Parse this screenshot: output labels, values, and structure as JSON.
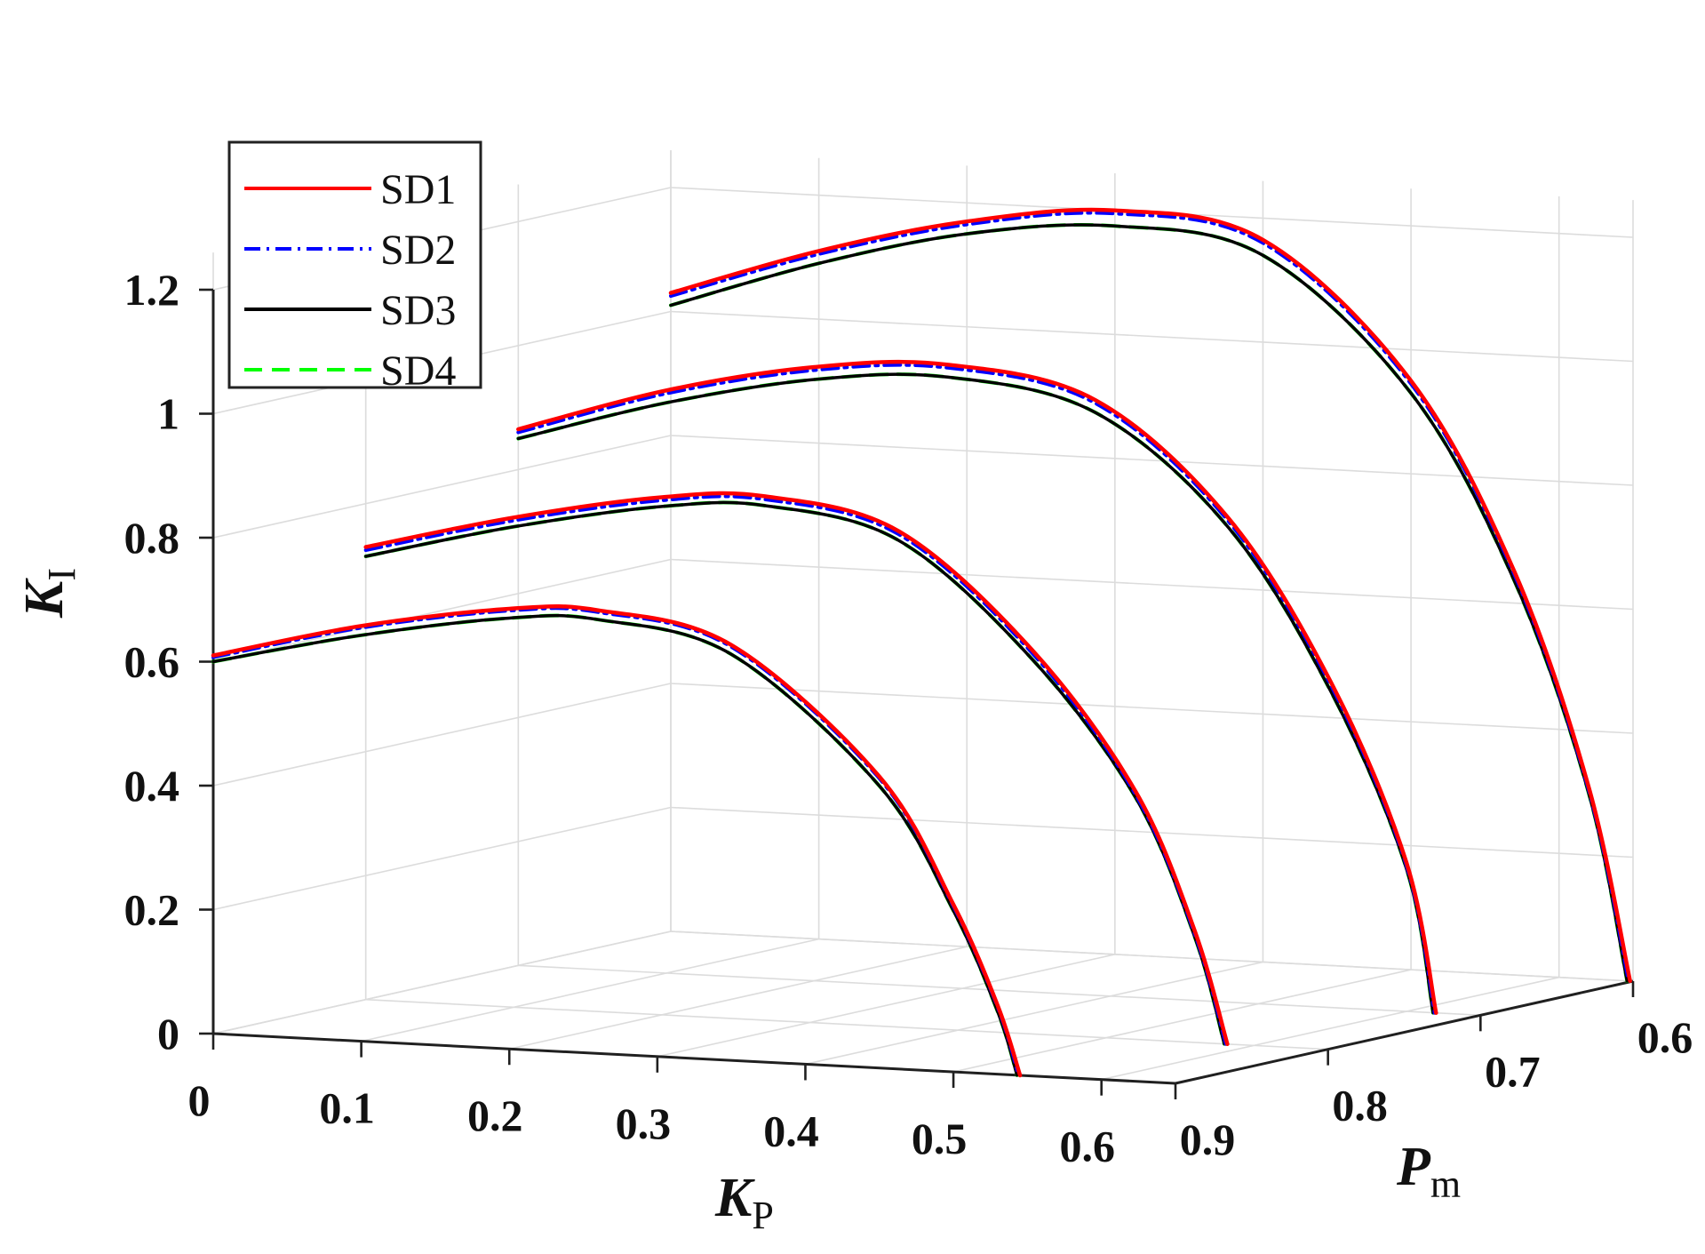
{
  "chart_data": {
    "type": "line",
    "view": "3d",
    "title": "",
    "xlabel": "K",
    "xlabel_sub": "P",
    "ylabel": "P",
    "ylabel_sub": "m",
    "zlabel": "K",
    "zlabel_sub": "I",
    "xlim": [
      0,
      0.65
    ],
    "ylim": [
      0.6,
      0.9
    ],
    "zlim": [
      0,
      1.2
    ],
    "x_ticks": [
      "0",
      "0.1",
      "0.2",
      "0.3",
      "0.4",
      "0.5",
      "0.6"
    ],
    "y_ticks": [
      "0.6",
      "0.7",
      "0.8",
      "0.9"
    ],
    "z_ticks": [
      "0",
      "0.2",
      "0.4",
      "0.6",
      "0.8",
      "1",
      "1.2"
    ],
    "grid": true,
    "legend_position": "top-left",
    "colors": {
      "SD1": "#ff0000",
      "SD2": "#0000ff",
      "SD3": "#000000",
      "SD4": "#00ff00"
    },
    "series": [
      {
        "name": "SD1",
        "style": "solid",
        "curves": [
          {
            "Pm": 0.9,
            "Kp": [
              0.0,
              0.1,
              0.2,
              0.26,
              0.35,
              0.45,
              0.5,
              0.53,
              0.545
            ],
            "KI": [
              0.61,
              0.67,
              0.71,
              0.715,
              0.67,
              0.47,
              0.27,
              0.11,
              0.0
            ]
          },
          {
            "Pm": 0.8,
            "Kp": [
              0.0,
              0.1,
              0.2,
              0.27,
              0.36,
              0.45,
              0.52,
              0.56,
              0.582
            ],
            "KI": [
              0.73,
              0.79,
              0.835,
              0.845,
              0.8,
              0.62,
              0.4,
              0.18,
              0.0
            ]
          },
          {
            "Pm": 0.7,
            "Kp": [
              0.0,
              0.1,
              0.2,
              0.29,
              0.39,
              0.48,
              0.55,
              0.6,
              0.62
            ],
            "KI": [
              0.865,
              0.94,
              0.99,
              1.005,
              0.96,
              0.78,
              0.52,
              0.24,
              0.0
            ]
          },
          {
            "Pm": 0.6,
            "Kp": [
              0.0,
              0.1,
              0.2,
              0.3,
              0.4,
              0.5,
              0.57,
              0.62,
              0.648
            ],
            "KI": [
              1.03,
              1.11,
              1.17,
              1.2,
              1.165,
              0.95,
              0.65,
              0.31,
              0.0
            ]
          }
        ]
      },
      {
        "name": "SD2",
        "style": "dashdot",
        "curves": [
          {
            "Pm": 0.9,
            "Kp": [
              0.0,
              0.1,
              0.2,
              0.26,
              0.35,
              0.45,
              0.5,
              0.53,
              0.544
            ],
            "KI": [
              0.607,
              0.667,
              0.707,
              0.712,
              0.667,
              0.467,
              0.267,
              0.107,
              0.0
            ]
          },
          {
            "Pm": 0.8,
            "Kp": [
              0.0,
              0.1,
              0.2,
              0.27,
              0.36,
              0.45,
              0.52,
              0.56,
              0.581
            ],
            "KI": [
              0.725,
              0.785,
              0.83,
              0.84,
              0.795,
              0.615,
              0.395,
              0.175,
              0.0
            ]
          },
          {
            "Pm": 0.7,
            "Kp": [
              0.0,
              0.1,
              0.2,
              0.29,
              0.39,
              0.48,
              0.55,
              0.6,
              0.619
            ],
            "KI": [
              0.86,
              0.935,
              0.985,
              1.0,
              0.955,
              0.775,
              0.515,
              0.235,
              0.0
            ]
          },
          {
            "Pm": 0.6,
            "Kp": [
              0.0,
              0.1,
              0.2,
              0.3,
              0.4,
              0.5,
              0.57,
              0.62,
              0.647
            ],
            "KI": [
              1.025,
              1.105,
              1.165,
              1.195,
              1.16,
              0.945,
              0.645,
              0.305,
              0.0
            ]
          }
        ]
      },
      {
        "name": "SD3",
        "style": "solid",
        "curves": [
          {
            "Pm": 0.9,
            "Kp": [
              0.0,
              0.1,
              0.2,
              0.26,
              0.35,
              0.45,
              0.5,
              0.53,
              0.543
            ],
            "KI": [
              0.6,
              0.655,
              0.695,
              0.7,
              0.655,
              0.455,
              0.26,
              0.1,
              0.0
            ]
          },
          {
            "Pm": 0.8,
            "Kp": [
              0.0,
              0.1,
              0.2,
              0.27,
              0.36,
              0.45,
              0.52,
              0.56,
              0.58
            ],
            "KI": [
              0.715,
              0.775,
              0.82,
              0.83,
              0.785,
              0.605,
              0.39,
              0.17,
              0.0
            ]
          },
          {
            "Pm": 0.7,
            "Kp": [
              0.0,
              0.1,
              0.2,
              0.29,
              0.39,
              0.48,
              0.55,
              0.6,
              0.618
            ],
            "KI": [
              0.85,
              0.92,
              0.97,
              0.985,
              0.94,
              0.765,
              0.505,
              0.23,
              0.0
            ]
          },
          {
            "Pm": 0.6,
            "Kp": [
              0.0,
              0.1,
              0.2,
              0.3,
              0.4,
              0.5,
              0.57,
              0.62,
              0.646
            ],
            "KI": [
              1.01,
              1.09,
              1.15,
              1.175,
              1.14,
              0.93,
              0.635,
              0.3,
              0.0
            ]
          }
        ]
      },
      {
        "name": "SD4",
        "style": "dashed",
        "curves": [
          {
            "Pm": 0.9,
            "Kp": [
              0.0,
              0.1,
              0.2,
              0.26,
              0.35,
              0.45,
              0.5,
              0.53,
              0.543
            ],
            "KI": [
              0.6,
              0.655,
              0.695,
              0.7,
              0.655,
              0.455,
              0.26,
              0.1,
              0.0
            ]
          },
          {
            "Pm": 0.8,
            "Kp": [
              0.0,
              0.1,
              0.2,
              0.27,
              0.36,
              0.45,
              0.52,
              0.56,
              0.58
            ],
            "KI": [
              0.715,
              0.775,
              0.82,
              0.83,
              0.785,
              0.605,
              0.39,
              0.17,
              0.0
            ]
          },
          {
            "Pm": 0.7,
            "Kp": [
              0.0,
              0.1,
              0.2,
              0.29,
              0.39,
              0.48,
              0.55,
              0.6,
              0.618
            ],
            "KI": [
              0.85,
              0.92,
              0.97,
              0.985,
              0.94,
              0.765,
              0.505,
              0.23,
              0.0
            ]
          },
          {
            "Pm": 0.6,
            "Kp": [
              0.0,
              0.1,
              0.2,
              0.3,
              0.4,
              0.5,
              0.57,
              0.62,
              0.646
            ],
            "KI": [
              1.01,
              1.09,
              1.15,
              1.175,
              1.14,
              0.93,
              0.635,
              0.3,
              0.0
            ]
          }
        ]
      }
    ]
  }
}
